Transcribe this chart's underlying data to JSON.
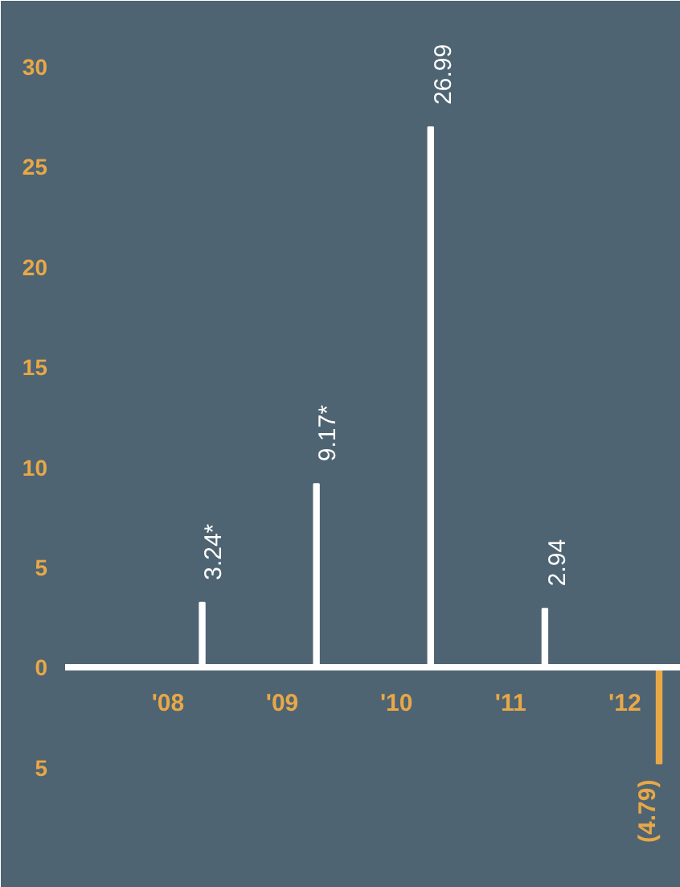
{
  "chart_data": {
    "type": "bar",
    "categories": [
      "'08",
      "'09",
      "'10",
      "'11",
      "'12"
    ],
    "values": [
      3.24,
      9.17,
      26.99,
      2.94,
      -4.79
    ],
    "colors": [
      "#ffffff",
      "#ffffff",
      "#ffffff",
      "#ffffff",
      "#e8a847"
    ],
    "value_labels": [
      "3.24*",
      "9.17*",
      "26.99",
      "2.94",
      "(4.79)"
    ],
    "ylim": [
      -11,
      33.3
    ],
    "yticks": [
      {
        "value": -5,
        "label": "5"
      },
      0,
      5,
      10,
      15,
      20,
      25,
      30
    ],
    "grid": false
  }
}
